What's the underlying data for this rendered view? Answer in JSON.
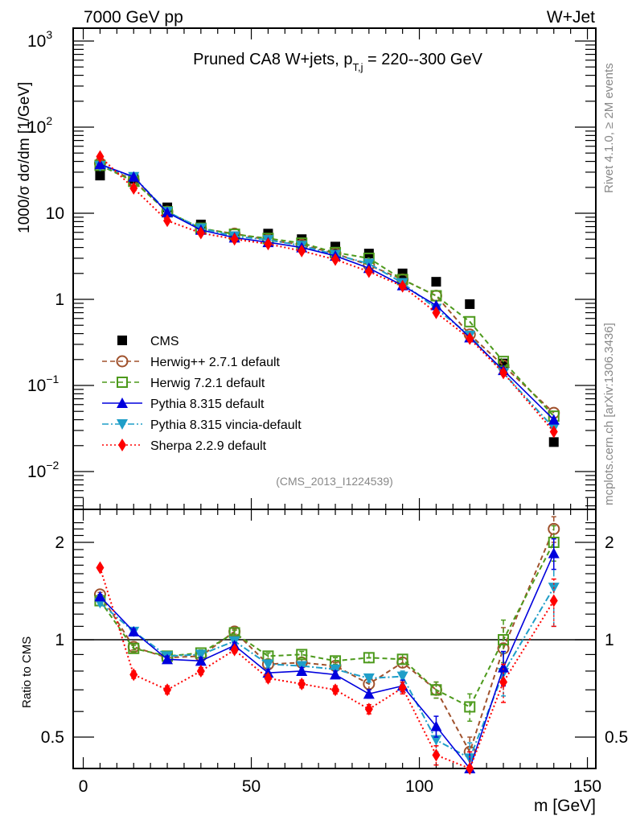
{
  "header": {
    "left": "7000 GeV pp",
    "right": "W+Jet"
  },
  "side_labels": {
    "rivet": "Rivet 4.1.0, ≥ 2M events",
    "mcplots": "mcplots.cern.ch [arXiv:1306.3436]"
  },
  "chart_data": [
    {
      "type": "line",
      "scale": "log",
      "title_main": "Pruned CA8 W+jets, p",
      "title_sub": "T,j",
      "title_rest": " = 220--300 GeV",
      "ylabel": "1000/σ  dσ/dm [1/GeV]",
      "xlabel": "m [GeV]",
      "watermark": "(CMS_2013_I1224539)",
      "xlim": [
        -3,
        152.5
      ],
      "ylim": [
        0.004,
        1400
      ],
      "x_ticks": [
        0,
        50,
        100,
        150
      ],
      "y_ticks": [
        {
          "value": 1000,
          "label": "10",
          "exp": "3"
        },
        {
          "value": 100,
          "label": "10",
          "exp": "2"
        },
        {
          "value": 10,
          "label": "10",
          "exp": ""
        },
        {
          "value": 1,
          "label": "1",
          "exp": ""
        },
        {
          "value": 0.1,
          "label": "10",
          "exp": "−1"
        },
        {
          "value": 0.01,
          "label": "10",
          "exp": "−2"
        }
      ],
      "x": [
        5,
        15,
        25,
        35,
        45,
        55,
        65,
        75,
        85,
        95,
        105,
        115,
        125,
        140
      ],
      "legend_position": "middle-left",
      "series": [
        {
          "name": "CMS",
          "color": "#000000",
          "marker": "square-filled",
          "line": "none",
          "values": [
            27.4,
            25.0,
            11.7,
            7.4,
            5.4,
            5.8,
            5.0,
            4.1,
            3.4,
            2.0,
            1.6,
            0.88,
            0.18,
            0.022
          ]
        },
        {
          "name": "Herwig++ 2.7.1 default",
          "color": "#a0522d",
          "marker": "circle-open",
          "line": "dashed",
          "values": [
            38.0,
            24.0,
            10.4,
            6.6,
            5.8,
            4.9,
            4.3,
            3.4,
            2.5,
            1.7,
            1.1,
            0.39,
            0.17,
            0.048
          ]
        },
        {
          "name": "Herwig 7.2.1 default",
          "color": "#4d9a1c",
          "marker": "square-open",
          "line": "dashed",
          "values": [
            36.0,
            23.5,
            10.4,
            6.7,
            5.7,
            5.1,
            4.5,
            3.5,
            3.0,
            1.7,
            1.1,
            0.55,
            0.19,
            0.044
          ]
        },
        {
          "name": "Pythia 8.315 default",
          "color": "#0000dd",
          "marker": "triangle-up",
          "line": "solid",
          "values": [
            37.0,
            26.5,
            10.2,
            6.4,
            5.2,
            4.6,
            4.0,
            3.2,
            2.3,
            1.45,
            0.85,
            0.36,
            0.15,
            0.04
          ]
        },
        {
          "name": "Pythia 8.315 vincia-default",
          "color": "#1f9ec8",
          "marker": "triangle-down",
          "line": "dashdot",
          "values": [
            35.5,
            26.5,
            10.4,
            6.7,
            5.4,
            4.9,
            4.2,
            3.3,
            2.6,
            1.55,
            0.78,
            0.38,
            0.14,
            0.032
          ]
        },
        {
          "name": "Sherpa 2.2.9 default",
          "color": "#ff0000",
          "marker": "diamond",
          "line": "dotted",
          "values": [
            45.5,
            19.5,
            8.2,
            5.9,
            5.0,
            4.4,
            3.65,
            2.9,
            2.1,
            1.42,
            0.7,
            0.35,
            0.14,
            0.029
          ]
        }
      ]
    },
    {
      "type": "line",
      "scale": "log",
      "ylabel": "Ratio to CMS",
      "xlabel": "m [GeV]",
      "xlim": [
        -3,
        152.5
      ],
      "ylim": [
        0.4,
        2.4
      ],
      "y_ticks": [
        {
          "value": 2,
          "label": "2"
        },
        {
          "value": 1,
          "label": "1"
        },
        {
          "value": 0.5,
          "label": "0.5"
        }
      ],
      "x": [
        5,
        15,
        25,
        35,
        45,
        55,
        65,
        75,
        85,
        95,
        105,
        115,
        125,
        140
      ],
      "reference_line": 1,
      "series": [
        {
          "name": "Herwig++ 2.7.1 default",
          "values": [
            1.38,
            0.95,
            0.88,
            0.89,
            1.06,
            0.84,
            0.85,
            0.83,
            0.73,
            0.85,
            0.7,
            0.45,
            0.94,
            2.2
          ],
          "err": [
            0.02,
            0.02,
            0.02,
            0.02,
            0.02,
            0.02,
            0.02,
            0.02,
            0.03,
            0.03,
            0.04,
            0.05,
            0.15,
            0.2
          ]
        },
        {
          "name": "Herwig 7.2.1 default",
          "values": [
            1.32,
            0.94,
            0.89,
            0.91,
            1.05,
            0.89,
            0.9,
            0.86,
            0.88,
            0.87,
            0.7,
            0.62,
            1.0,
            2.0
          ],
          "err": [
            0.02,
            0.02,
            0.02,
            0.02,
            0.02,
            0.02,
            0.02,
            0.02,
            0.03,
            0.03,
            0.04,
            0.06,
            0.15,
            0.25
          ]
        },
        {
          "name": "Pythia 8.315 default",
          "values": [
            1.36,
            1.06,
            0.87,
            0.86,
            0.96,
            0.79,
            0.8,
            0.78,
            0.68,
            0.72,
            0.54,
            0.4,
            0.82,
            1.85
          ],
          "err": [
            0.02,
            0.02,
            0.02,
            0.02,
            0.02,
            0.02,
            0.02,
            0.02,
            0.02,
            0.03,
            0.04,
            0.05,
            0.1,
            0.2
          ]
        },
        {
          "name": "Pythia 8.315 vincia-default",
          "values": [
            1.3,
            1.06,
            0.89,
            0.9,
            0.99,
            0.84,
            0.83,
            0.81,
            0.76,
            0.77,
            0.49,
            0.43,
            0.79,
            1.45
          ],
          "err": [
            0.02,
            0.02,
            0.02,
            0.02,
            0.02,
            0.02,
            0.02,
            0.02,
            0.02,
            0.03,
            0.04,
            0.05,
            0.12,
            0.35
          ]
        },
        {
          "name": "Sherpa 2.2.9 default",
          "values": [
            1.67,
            0.78,
            0.7,
            0.8,
            0.93,
            0.76,
            0.73,
            0.7,
            0.61,
            0.71,
            0.44,
            0.4,
            0.74,
            1.32
          ],
          "err": [
            0.02,
            0.02,
            0.02,
            0.02,
            0.02,
            0.02,
            0.02,
            0.02,
            0.02,
            0.03,
            0.03,
            0.05,
            0.1,
            0.22
          ]
        }
      ]
    }
  ]
}
